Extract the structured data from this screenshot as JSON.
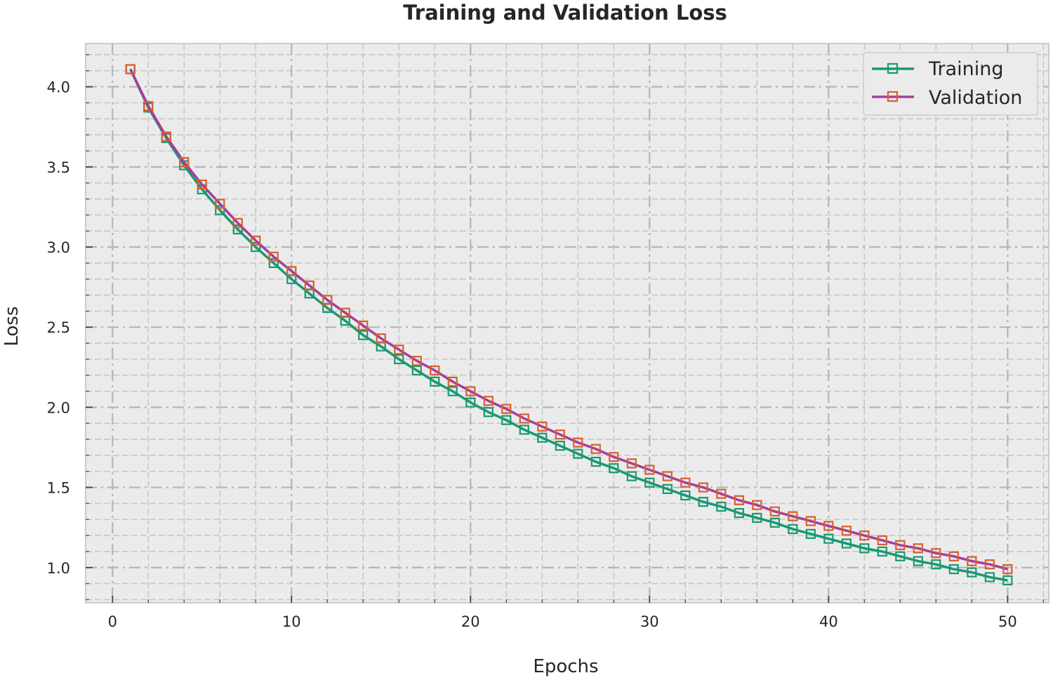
{
  "chart_data": {
    "type": "line",
    "title": "Training and Validation Loss",
    "xlabel": "Epochs",
    "ylabel": "Loss",
    "xlim": [
      -1.5,
      52.3
    ],
    "ylim": [
      0.78,
      4.27
    ],
    "xticks": [
      0,
      10,
      20,
      30,
      40,
      50
    ],
    "xtick_labels": [
      "0",
      "10",
      "20",
      "30",
      "40",
      "50"
    ],
    "yticks": [
      1.0,
      1.5,
      2.0,
      2.5,
      3.0,
      3.5,
      4.0
    ],
    "ytick_labels": [
      "1.0",
      "1.5",
      "2.0",
      "2.5",
      "3.0",
      "3.5",
      "4.0"
    ],
    "grid": true,
    "legend_position": "top-right",
    "x": [
      1,
      2,
      3,
      4,
      5,
      6,
      7,
      8,
      9,
      10,
      11,
      12,
      13,
      14,
      15,
      16,
      17,
      18,
      19,
      20,
      21,
      22,
      23,
      24,
      25,
      26,
      27,
      28,
      29,
      30,
      31,
      32,
      33,
      34,
      35,
      36,
      37,
      38,
      39,
      40,
      41,
      42,
      43,
      44,
      45,
      46,
      47,
      48,
      49,
      50
    ],
    "series": [
      {
        "name": "Training",
        "color": "#1a9873",
        "marker_color": "#1a9873",
        "values": [
          4.11,
          3.87,
          3.68,
          3.51,
          3.36,
          3.23,
          3.11,
          3.0,
          2.9,
          2.8,
          2.71,
          2.62,
          2.54,
          2.45,
          2.38,
          2.3,
          2.23,
          2.16,
          2.1,
          2.03,
          1.97,
          1.92,
          1.86,
          1.81,
          1.76,
          1.71,
          1.66,
          1.62,
          1.57,
          1.53,
          1.49,
          1.45,
          1.41,
          1.38,
          1.34,
          1.31,
          1.28,
          1.24,
          1.21,
          1.18,
          1.15,
          1.12,
          1.1,
          1.07,
          1.04,
          1.02,
          0.99,
          0.97,
          0.94,
          0.92
        ]
      },
      {
        "name": "Validation",
        "color": "#a63e9c",
        "marker_color": "#d95f2b",
        "values": [
          4.11,
          3.88,
          3.69,
          3.53,
          3.39,
          3.27,
          3.15,
          3.04,
          2.94,
          2.85,
          2.76,
          2.67,
          2.59,
          2.51,
          2.43,
          2.36,
          2.29,
          2.23,
          2.16,
          2.1,
          2.04,
          1.99,
          1.93,
          1.88,
          1.83,
          1.78,
          1.74,
          1.69,
          1.65,
          1.61,
          1.57,
          1.53,
          1.5,
          1.46,
          1.42,
          1.39,
          1.35,
          1.32,
          1.29,
          1.26,
          1.23,
          1.2,
          1.17,
          1.14,
          1.12,
          1.09,
          1.07,
          1.04,
          1.02,
          0.99
        ]
      }
    ]
  }
}
